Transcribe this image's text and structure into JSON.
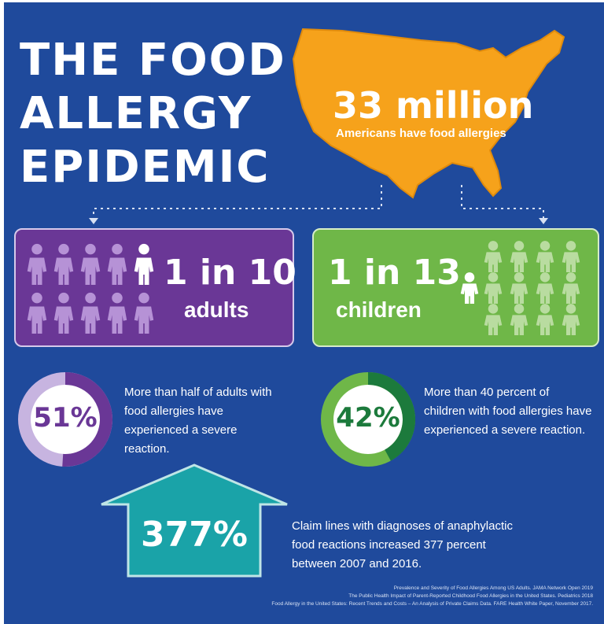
{
  "title": {
    "line1": "THE FOOD",
    "line2": "ALLERGY",
    "line3": "EPIDEMIC"
  },
  "map": {
    "stat": "33 million",
    "caption": "Americans have food allergies",
    "color": "#f6a21b"
  },
  "adults": {
    "ratio": "1 in 10",
    "label": "adults",
    "color": "#6a3796",
    "highlight_index": 4,
    "people_count": 10
  },
  "children": {
    "ratio": "1 in 13",
    "label": "children",
    "color": "#6fb748",
    "highlight_index": 4,
    "people_count": 13
  },
  "adult_stat": {
    "percent_text": "51%",
    "fraction": 0.51,
    "description": "More than half of adults with food allergies have experienced a severe reaction.",
    "ring_color": "#6a3796",
    "ring_bg": "#c7b4e0"
  },
  "child_stat": {
    "percent_text": "42%",
    "fraction": 0.42,
    "description": "More than 40 percent of children with food allergies have experienced a severe reaction.",
    "ring_color": "#1c7a3c",
    "ring_bg": "#6fb748"
  },
  "increase": {
    "value": "377%",
    "description": "Claim lines with diagnoses of anaphylactic food reactions increased 377 percent between 2007 and 2016.",
    "color": "#1aa3a8"
  },
  "sources": [
    "Prevalence and Severity of Food Allergies Among US Adults. JAMA Network Open 2019",
    "The Public Health Impact of Parent-Reported Childhood Food Allergies in the United States. Pediatrics 2018",
    "Food Allergy in the United States: Recent Trends and Costs – An Analysis of Private Claims Data. FARE Health White Paper, November 2017."
  ]
}
